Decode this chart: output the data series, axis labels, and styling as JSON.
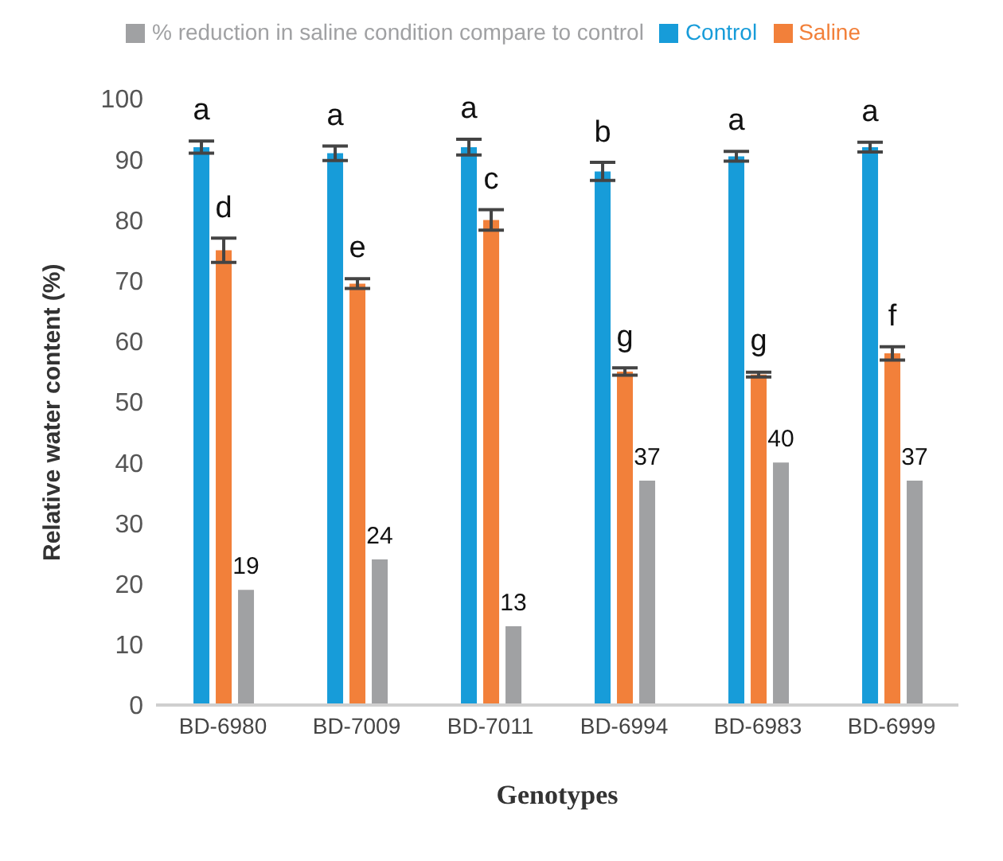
{
  "chart_data": {
    "type": "bar",
    "xlabel": "Genotypes",
    "ylabel": "Relative water content (%)",
    "categories": [
      "BD-6980",
      "BD-7009",
      "BD-7011",
      "BD-6994",
      "BD-6983",
      "BD-6999"
    ],
    "series": [
      {
        "name": "Control",
        "color": "#179cd9",
        "values": [
          92,
          91,
          92,
          88,
          90.5,
          92
        ],
        "errors": [
          1,
          1.2,
          1.3,
          1.5,
          0.8,
          0.8
        ],
        "value_labels": [
          "a",
          "a",
          "a",
          "b",
          "a",
          "a"
        ]
      },
      {
        "name": "Saline",
        "color": "#f2803a",
        "values": [
          75,
          69.5,
          80,
          55,
          54.5,
          58
        ],
        "errors": [
          2,
          0.8,
          1.7,
          0.6,
          0.4,
          1.1
        ],
        "value_labels": [
          "d",
          "e",
          "c",
          "g",
          "g",
          "f"
        ]
      },
      {
        "name": "% reduction in saline condition compare to control",
        "color": "#a0a1a3",
        "values": [
          19,
          24,
          13,
          37,
          40,
          37
        ],
        "value_labels": [
          "19",
          "24",
          "13",
          "37",
          "40",
          "37"
        ]
      }
    ],
    "ylim": [
      0,
      100
    ],
    "yticks": [
      0,
      10,
      20,
      30,
      40,
      50,
      60,
      70,
      80,
      90,
      100
    ],
    "grid": false,
    "legend": "top"
  }
}
